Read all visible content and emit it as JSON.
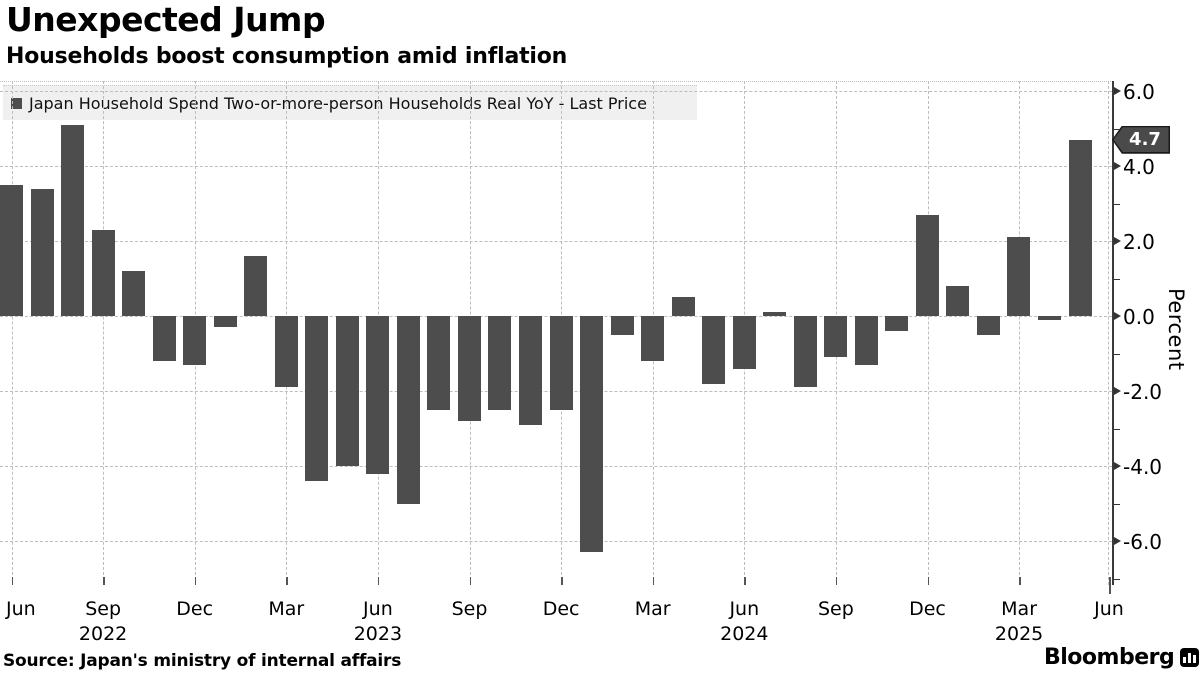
{
  "header": {
    "title": "Unexpected Jump",
    "subtitle": "Households boost consumption amid inflation"
  },
  "legend": {
    "series_label": "Japan Household Spend Two-or-more-person Households Real YoY - Last Price"
  },
  "last_price_badge": {
    "value": "4.7"
  },
  "y_axis": {
    "title": "Percent",
    "major_ticks": [
      6.0,
      4.0,
      2.0,
      0.0,
      -2.0,
      -4.0,
      -6.0
    ],
    "major_tick_labels": [
      "6.0",
      "4.0",
      "2.0",
      "0.0",
      "-2.0",
      "-4.0",
      "-6.0"
    ],
    "minor_ticks": [
      5.0,
      3.0,
      1.0,
      -1.0,
      -3.0,
      -5.0,
      -7.0
    ]
  },
  "x_axis": {
    "quarter_ticks": [
      {
        "label": "Jun"
      },
      {
        "label": "Sep",
        "year": "2022"
      },
      {
        "label": "Dec"
      },
      {
        "label": "Mar"
      },
      {
        "label": "Jun",
        "year": "2023"
      },
      {
        "label": "Sep"
      },
      {
        "label": "Dec"
      },
      {
        "label": "Mar"
      },
      {
        "label": "Jun",
        "year": "2024"
      },
      {
        "label": "Sep"
      },
      {
        "label": "Dec"
      },
      {
        "label": "Mar",
        "year": "2025"
      },
      {
        "label": "Jun"
      }
    ]
  },
  "footer": {
    "source": "Source: Japan's ministry of internal affairs",
    "brand": "Bloomberg",
    "brand_icon": "bar-chart-icon"
  },
  "colors": {
    "bar": "#4d4d4d",
    "legend_background": "#f0f0f0",
    "badge_background": "#4a4a4a",
    "badge_text": "#ffffff",
    "gridline": "#bdbdbd",
    "axis": "#3a3a3a",
    "text": "#000000"
  },
  "chart_data": {
    "type": "bar",
    "title": "Unexpected Jump",
    "subtitle": "Households boost consumption amid inflation",
    "series_name": "Japan Household Spend Two-or-more-person Households Real YoY - Last Price",
    "ylabel": "Percent",
    "unit": "percent, real YoY",
    "ylim": [
      -7.2,
      6.3
    ],
    "grid": true,
    "legend_position": "top-left",
    "last_price": 4.7,
    "x": [
      "Jun 2022",
      "Jul 2022",
      "Aug 2022",
      "Sep 2022",
      "Oct 2022",
      "Nov 2022",
      "Dec 2022",
      "Jan 2023",
      "Feb 2023",
      "Mar 2023",
      "Apr 2023",
      "May 2023",
      "Jun 2023",
      "Jul 2023",
      "Aug 2023",
      "Sep 2023",
      "Oct 2023",
      "Nov 2023",
      "Dec 2023",
      "Jan 2024",
      "Feb 2024",
      "Mar 2024",
      "Apr 2024",
      "May 2024",
      "Jun 2024",
      "Jul 2024",
      "Aug 2024",
      "Sep 2024",
      "Oct 2024",
      "Nov 2024",
      "Dec 2024",
      "Jan 2025",
      "Feb 2025",
      "Mar 2025",
      "Apr 2025",
      "May 2025"
    ],
    "values": [
      3.5,
      3.4,
      5.1,
      2.3,
      1.2,
      -1.2,
      -1.3,
      -0.3,
      1.6,
      -1.9,
      -4.4,
      -4.0,
      -4.2,
      -5.0,
      -2.5,
      -2.8,
      -2.5,
      -2.9,
      -2.5,
      -6.3,
      -0.5,
      -1.2,
      0.5,
      -1.8,
      -1.4,
      0.1,
      -1.9,
      -1.1,
      -1.3,
      -0.4,
      2.7,
      0.8,
      -0.5,
      2.1,
      -0.1,
      4.7
    ]
  }
}
